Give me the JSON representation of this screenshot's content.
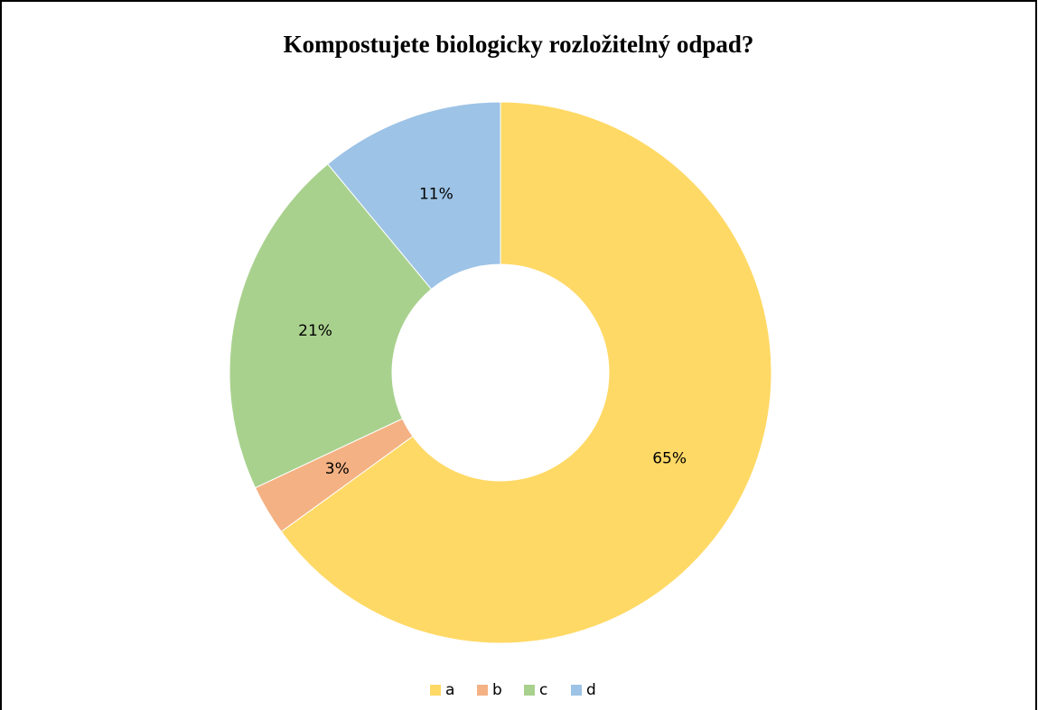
{
  "chart_data": {
    "type": "donut",
    "title": "Kompostujete biologicky rozložitelný odpad?",
    "categories": [
      "a",
      "b",
      "c",
      "d"
    ],
    "values": [
      65,
      3,
      21,
      11
    ],
    "value_labels": [
      "65%",
      "3%",
      "21%",
      "11%"
    ],
    "colors": [
      "#ffd966",
      "#f4b183",
      "#a9d18e",
      "#9dc3e6"
    ],
    "legend": "bottom"
  }
}
